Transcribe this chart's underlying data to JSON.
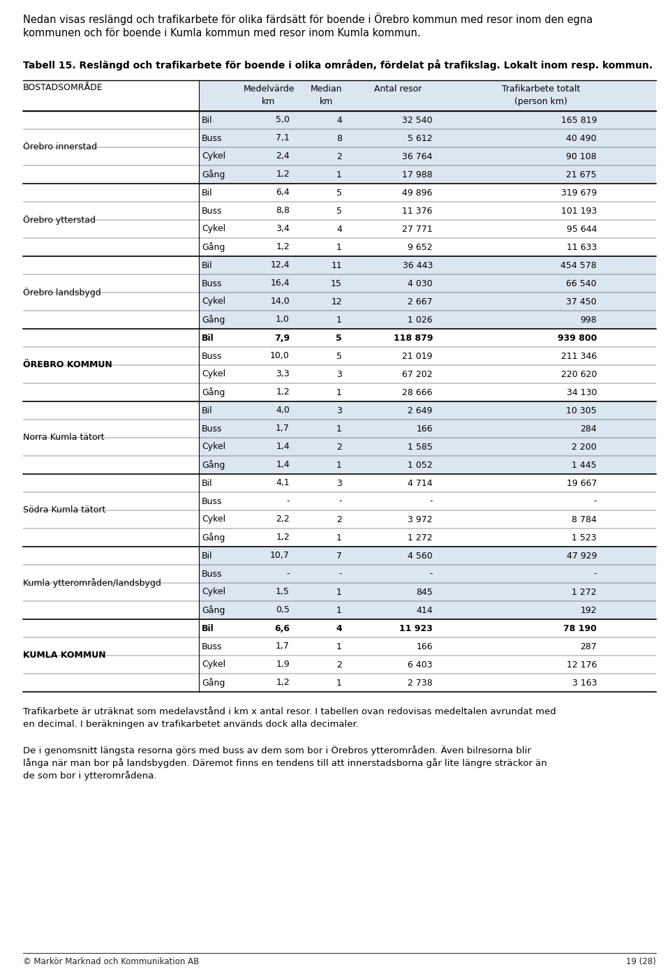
{
  "intro_text_line1": "Nedan visas reslängd och trafikarbete för olika färdsätt för boende i Örebro kommun med resor inom den egna",
  "intro_text_line2": "kommunen och för boende i Kumla kommun med resor inom Kumla kommun.",
  "table_title": "Tabell 15. Reslängd och trafikarbete för boende i olika områden, fördelat på trafikslag. Lokalt inom resp. kommun.",
  "rows": [
    {
      "area": "Örebro innerstad",
      "mode": "Bil",
      "medel": "5,0",
      "median": "4",
      "antal": "32 540",
      "trafik": "165 819",
      "bold": false
    },
    {
      "area": "",
      "mode": "Buss",
      "medel": "7,1",
      "median": "8",
      "antal": "5 612",
      "trafik": "40 490",
      "bold": false
    },
    {
      "area": "",
      "mode": "Cykel",
      "medel": "2,4",
      "median": "2",
      "antal": "36 764",
      "trafik": "90 108",
      "bold": false
    },
    {
      "area": "",
      "mode": "Gång",
      "medel": "1,2",
      "median": "1",
      "antal": "17 988",
      "trafik": "21 675",
      "bold": false
    },
    {
      "area": "Örebro ytterstad",
      "mode": "Bil",
      "medel": "6,4",
      "median": "5",
      "antal": "49 896",
      "trafik": "319 679",
      "bold": false
    },
    {
      "area": "",
      "mode": "Buss",
      "medel": "8,8",
      "median": "5",
      "antal": "11 376",
      "trafik": "101 193",
      "bold": false
    },
    {
      "area": "",
      "mode": "Cykel",
      "medel": "3,4",
      "median": "4",
      "antal": "27 771",
      "trafik": "95 644",
      "bold": false
    },
    {
      "area": "",
      "mode": "Gång",
      "medel": "1,2",
      "median": "1",
      "antal": "9 652",
      "trafik": "11 633",
      "bold": false
    },
    {
      "area": "Örebro landsbygd",
      "mode": "Bil",
      "medel": "12,4",
      "median": "11",
      "antal": "36 443",
      "trafik": "454 578",
      "bold": false
    },
    {
      "area": "",
      "mode": "Buss",
      "medel": "16,4",
      "median": "15",
      "antal": "4 030",
      "trafik": "66 540",
      "bold": false
    },
    {
      "area": "",
      "mode": "Cykel",
      "medel": "14,0",
      "median": "12",
      "antal": "2 667",
      "trafik": "37 450",
      "bold": false
    },
    {
      "area": "",
      "mode": "Gång",
      "medel": "1,0",
      "median": "1",
      "antal": "1 026",
      "trafik": "998",
      "bold": false
    },
    {
      "area": "ÖREBRO KOMMUN",
      "mode": "Bil",
      "medel": "7,9",
      "median": "5",
      "antal": "118 879",
      "trafik": "939 800",
      "bold": true
    },
    {
      "area": "",
      "mode": "Buss",
      "medel": "10,0",
      "median": "5",
      "antal": "21 019",
      "trafik": "211 346",
      "bold": false
    },
    {
      "area": "",
      "mode": "Cykel",
      "medel": "3,3",
      "median": "3",
      "antal": "67 202",
      "trafik": "220 620",
      "bold": false
    },
    {
      "area": "",
      "mode": "Gång",
      "medel": "1,2",
      "median": "1",
      "antal": "28 666",
      "trafik": "34 130",
      "bold": false
    },
    {
      "area": "Norra Kumla tätort",
      "mode": "Bil",
      "medel": "4,0",
      "median": "3",
      "antal": "2 649",
      "trafik": "10 305",
      "bold": false
    },
    {
      "area": "",
      "mode": "Buss",
      "medel": "1,7",
      "median": "1",
      "antal": "166",
      "trafik": "284",
      "bold": false
    },
    {
      "area": "",
      "mode": "Cykel",
      "medel": "1,4",
      "median": "2",
      "antal": "1 585",
      "trafik": "2 200",
      "bold": false
    },
    {
      "area": "",
      "mode": "Gång",
      "medel": "1,4",
      "median": "1",
      "antal": "1 052",
      "trafik": "1 445",
      "bold": false
    },
    {
      "area": "Södra Kumla tätort",
      "mode": "Bil",
      "medel": "4,1",
      "median": "3",
      "antal": "4 714",
      "trafik": "19 667",
      "bold": false
    },
    {
      "area": "",
      "mode": "Buss",
      "medel": "-",
      "median": "-",
      "antal": "-",
      "trafik": "-",
      "bold": false
    },
    {
      "area": "",
      "mode": "Cykel",
      "medel": "2,2",
      "median": "2",
      "antal": "3 972",
      "trafik": "8 784",
      "bold": false
    },
    {
      "area": "",
      "mode": "Gång",
      "medel": "1,2",
      "median": "1",
      "antal": "1 272",
      "trafik": "1 523",
      "bold": false
    },
    {
      "area": "Kumla ytterområden/landsbygd",
      "mode": "Bil",
      "medel": "10,7",
      "median": "7",
      "antal": "4 560",
      "trafik": "47 929",
      "bold": false
    },
    {
      "area": "",
      "mode": "Buss",
      "medel": "-",
      "median": "-",
      "antal": "-",
      "trafik": "-",
      "bold": false
    },
    {
      "area": "",
      "mode": "Cykel",
      "medel": "1,5",
      "median": "1",
      "antal": "845",
      "trafik": "1 272",
      "bold": false
    },
    {
      "area": "",
      "mode": "Gång",
      "medel": "0,5",
      "median": "1",
      "antal": "414",
      "trafik": "192",
      "bold": false
    },
    {
      "area": "KUMLA KOMMUN",
      "mode": "Bil",
      "medel": "6,6",
      "median": "4",
      "antal": "11 923",
      "trafik": "78 190",
      "bold": true
    },
    {
      "area": "",
      "mode": "Buss",
      "medel": "1,7",
      "median": "1",
      "antal": "166",
      "trafik": "287",
      "bold": false
    },
    {
      "area": "",
      "mode": "Cykel",
      "medel": "1,9",
      "median": "2",
      "antal": "6 403",
      "trafik": "12 176",
      "bold": false
    },
    {
      "area": "",
      "mode": "Gång",
      "medel": "1,2",
      "median": "1",
      "antal": "2 738",
      "trafik": "3 163",
      "bold": false
    }
  ],
  "group_starts": [
    0,
    4,
    8,
    12,
    16,
    20,
    24,
    28
  ],
  "group_colors": [
    "#dce6f1",
    "#ffffff",
    "#dce6f1",
    "#ffffff",
    "#dce6f1",
    "#ffffff",
    "#dce6f1",
    "#ffffff"
  ],
  "footer_text1_line1": "Trafikarbete är uträknat som medelavstånd i km x antal resor. I tabellen ovan redovisas medeltalen avrundat med",
  "footer_text1_line2": "en decimal. I beräkningen av trafikarbetet används dock alla decimaler.",
  "footer_text2_line1": "De i genomsnitt längsta resorna görs med buss av dem som bor i Örebros ytterområden. Även bilresorna blir",
  "footer_text2_line2": "långa när man bor på landsbygden. Däremot finns en tendens till att innerstadsborna går lite längre sträckor än",
  "footer_text2_line3": "de som bor i ytterområdena.",
  "page_footer": "© Markör Marknad och Kommunikation AB",
  "page_number": "19 (28)",
  "bg_color": "#dce6f1",
  "white_color": "#ffffff"
}
